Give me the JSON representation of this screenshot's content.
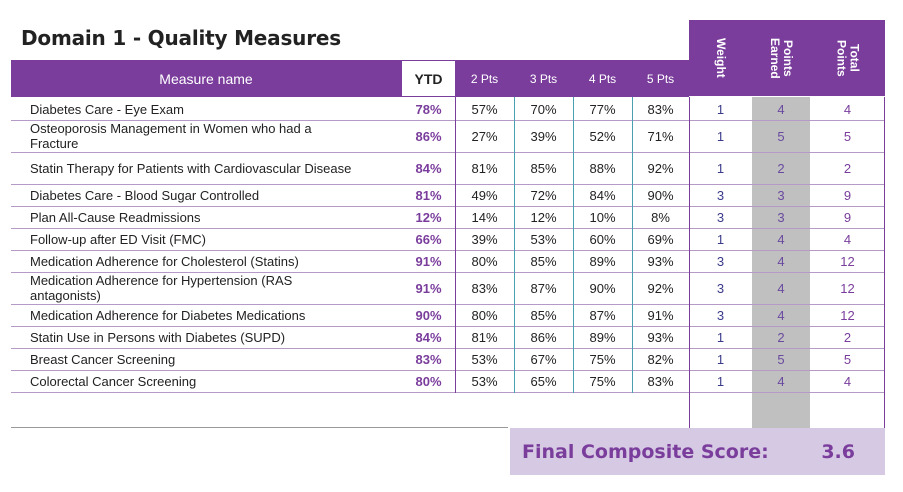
{
  "title": "Domain 1 - Quality Measures",
  "headers": {
    "measure_name": "Measure name",
    "ytd": "YTD",
    "pts2": "2 Pts",
    "pts3": "3 Pts",
    "pts4": "4 Pts",
    "pts5": "5 Pts",
    "weight": "Weight",
    "points_earned": "Points\nEarned",
    "total_points": "Total\nPoints"
  },
  "rows": [
    {
      "name": "Diabetes Care - Eye Exam",
      "ytd": "78%",
      "p2": "57%",
      "p3": "70%",
      "p4": "77%",
      "p5": "83%",
      "weight": "1",
      "earned": "4",
      "total": "4"
    },
    {
      "name": "Osteoporosis Management in Women who had a Fracture",
      "ytd": "86%",
      "p2": "27%",
      "p3": "39%",
      "p4": "52%",
      "p5": "71%",
      "weight": "1",
      "earned": "5",
      "total": "5"
    },
    {
      "name": "Statin Therapy for Patients with Cardiovascular Disease",
      "ytd": "84%",
      "p2": "81%",
      "p3": "85%",
      "p4": "88%",
      "p5": "92%",
      "weight": "1",
      "earned": "2",
      "total": "2"
    },
    {
      "name": "Diabetes Care - Blood Sugar Controlled",
      "ytd": "81%",
      "p2": "49%",
      "p3": "72%",
      "p4": "84%",
      "p5": "90%",
      "weight": "3",
      "earned": "3",
      "total": "9"
    },
    {
      "name": "Plan All-Cause Readmissions",
      "ytd": "12%",
      "p2": "14%",
      "p3": "12%",
      "p4": "10%",
      "p5": "8%",
      "weight": "3",
      "earned": "3",
      "total": "9"
    },
    {
      "name": "Follow-up after ED Visit (FMC)",
      "ytd": "66%",
      "p2": "39%",
      "p3": "53%",
      "p4": "60%",
      "p5": "69%",
      "weight": "1",
      "earned": "4",
      "total": "4"
    },
    {
      "name": "Medication Adherence for Cholesterol (Statins)",
      "ytd": "91%",
      "p2": "80%",
      "p3": "85%",
      "p4": "89%",
      "p5": "93%",
      "weight": "3",
      "earned": "4",
      "total": "12"
    },
    {
      "name": "Medication Adherence for Hypertension (RAS antagonists)",
      "ytd": "91%",
      "p2": "83%",
      "p3": "87%",
      "p4": "90%",
      "p5": "92%",
      "weight": "3",
      "earned": "4",
      "total": "12"
    },
    {
      "name": "Medication Adherence for Diabetes Medications",
      "ytd": "90%",
      "p2": "80%",
      "p3": "85%",
      "p4": "87%",
      "p5": "91%",
      "weight": "3",
      "earned": "4",
      "total": "12"
    },
    {
      "name": "Statin Use in Persons with Diabetes (SUPD)",
      "ytd": "84%",
      "p2": "81%",
      "p3": "86%",
      "p4": "89%",
      "p5": "93%",
      "weight": "1",
      "earned": "2",
      "total": "2"
    },
    {
      "name": "Breast Cancer Screening",
      "ytd": "83%",
      "p2": "53%",
      "p3": "67%",
      "p4": "75%",
      "p5": "82%",
      "weight": "1",
      "earned": "5",
      "total": "5"
    },
    {
      "name": "Colorectal Cancer Screening",
      "ytd": "80%",
      "p2": "53%",
      "p3": "65%",
      "p4": "75%",
      "p5": "83%",
      "weight": "1",
      "earned": "4",
      "total": "4"
    }
  ],
  "composite": {
    "label": "Final Composite Score:",
    "value": "3.6"
  },
  "colors": {
    "header_purple": "#7a3d9c",
    "points_grey": "#c0c0c0",
    "composite_bg": "#d6c9e3"
  }
}
